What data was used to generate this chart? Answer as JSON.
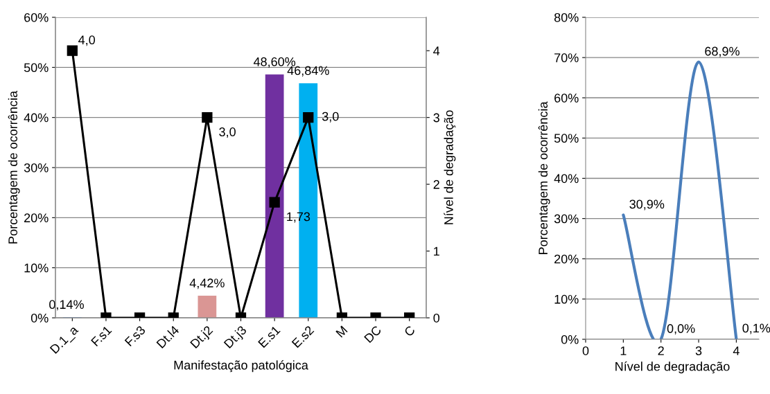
{
  "chart_data": [
    {
      "type": "bar",
      "xlabel": "Manifestação patológica",
      "ylabel": "Porcentagem de ocorrência",
      "y2label": "Nível de degradação",
      "categories": [
        "D.1_a",
        "F.s1",
        "F.s3",
        "Dt.l4",
        "Dt.j2",
        "Dt.j3",
        "E.s1",
        "E.s2",
        "M",
        "DC",
        "C"
      ],
      "series": [
        {
          "type": "bar",
          "values": [
            0.14,
            0,
            0,
            0,
            4.42,
            0,
            48.6,
            46.84,
            0,
            0,
            0
          ],
          "colors": [
            "#4f81bd",
            "#4f81bd",
            "#4f81bd",
            "#4f81bd",
            "#da9694",
            "#4f81bd",
            "#7030a0",
            "#00b0f0",
            "#4f81bd",
            "#4f81bd",
            "#4f81bd"
          ],
          "value_labels": [
            "0,14%",
            null,
            null,
            null,
            "4,42%",
            null,
            "48,60%",
            "46,84%",
            null,
            null,
            null
          ]
        },
        {
          "type": "line",
          "axis": "y2",
          "color": "#000000",
          "values": [
            4.0,
            0,
            0,
            0,
            3.0,
            0,
            1.73,
            3.0,
            0,
            0,
            0
          ],
          "value_labels": [
            "4,0",
            null,
            null,
            null,
            "3,0",
            null,
            "1,73",
            "3,0",
            null,
            null,
            null
          ]
        }
      ],
      "ylim": [
        0,
        60
      ],
      "yticks": [
        {
          "value": 0,
          "label": "0%"
        },
        {
          "value": 10,
          "label": "10%"
        },
        {
          "value": 20,
          "label": "20%"
        },
        {
          "value": 30,
          "label": "30%"
        },
        {
          "value": 40,
          "label": "40%"
        },
        {
          "value": 50,
          "label": "50%"
        },
        {
          "value": 60,
          "label": "60%"
        }
      ],
      "y2lim": [
        0,
        4.5
      ],
      "y2ticks": [
        0,
        1,
        2,
        3,
        4
      ],
      "grid": "y",
      "legend": false,
      "marker": "square",
      "line_style": "solid"
    },
    {
      "type": "line",
      "xlabel": "Nível de degradação",
      "ylabel": "Porcentagem de ocorrência",
      "x": [
        1,
        2,
        3,
        4
      ],
      "series": [
        {
          "color": "#4a7ebb",
          "values": [
            30.9,
            0.0,
            68.9,
            0.1
          ],
          "value_labels": [
            "30,9%",
            "0,0%",
            "68,9%",
            "0,1%"
          ]
        }
      ],
      "xlim": [
        0,
        4.6
      ],
      "xticks": [
        0,
        1,
        2,
        3,
        4
      ],
      "ylim": [
        0,
        80
      ],
      "yticks": [
        {
          "value": 0,
          "label": "0%"
        },
        {
          "value": 10,
          "label": "10%"
        },
        {
          "value": 20,
          "label": "20%"
        },
        {
          "value": 30,
          "label": "30%"
        },
        {
          "value": 40,
          "label": "40%"
        },
        {
          "value": 50,
          "label": "50%"
        },
        {
          "value": 60,
          "label": "60%"
        },
        {
          "value": 70,
          "label": "70%"
        },
        {
          "value": 80,
          "label": "80%"
        }
      ],
      "grid": "y",
      "legend": false,
      "marker": "none",
      "line_style": "solid"
    }
  ]
}
